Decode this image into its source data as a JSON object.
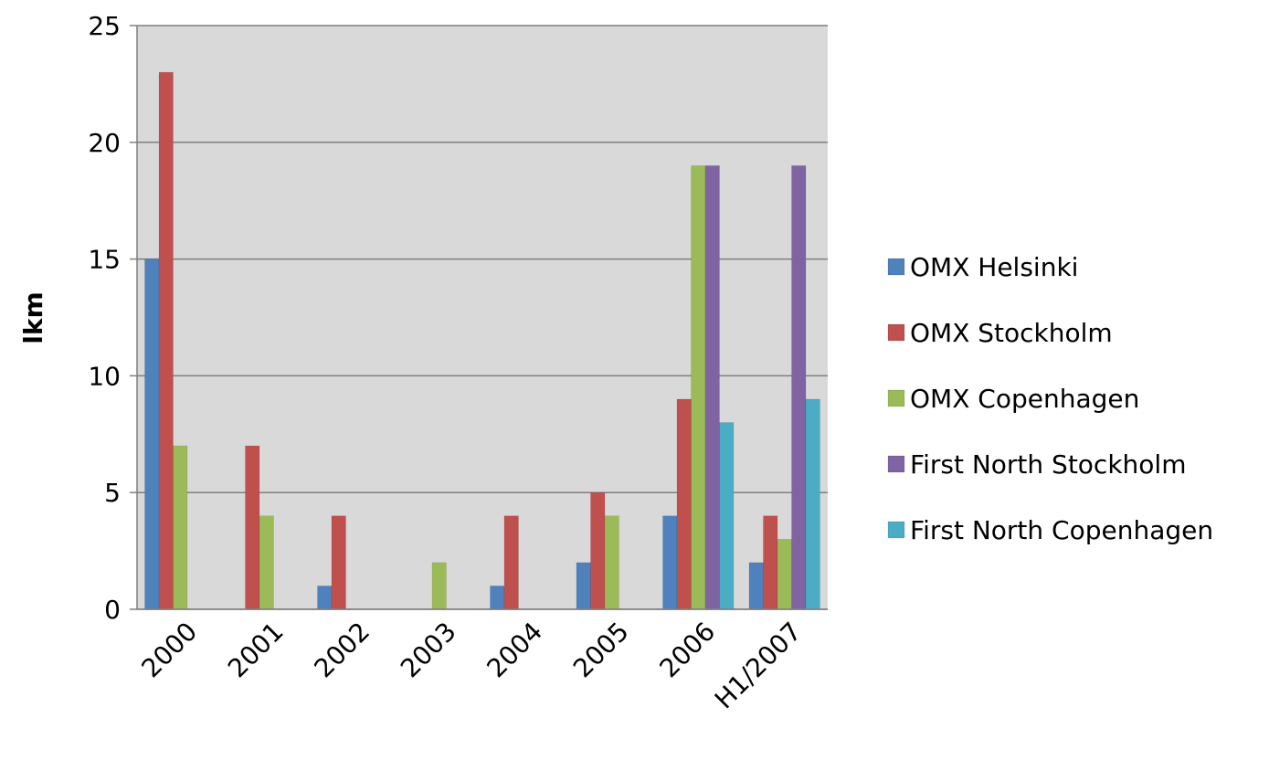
{
  "chart_data": {
    "type": "bar",
    "title": "",
    "xlabel": "",
    "ylabel": "lkm",
    "ylim": [
      0,
      25
    ],
    "yticks": [
      0,
      5,
      10,
      15,
      20,
      25
    ],
    "categories": [
      "2000",
      "2001",
      "2002",
      "2003",
      "2004",
      "2005",
      "2006",
      "H1/2007"
    ],
    "series": [
      {
        "name": "OMX Helsinki",
        "color": "#4F81BD",
        "values": [
          15,
          0,
          1,
          0,
          1,
          2,
          4,
          2
        ]
      },
      {
        "name": "OMX Stockholm",
        "color": "#C0504D",
        "values": [
          23,
          7,
          4,
          0,
          4,
          5,
          9,
          4
        ]
      },
      {
        "name": "OMX Copenhagen",
        "color": "#9BBB59",
        "values": [
          7,
          4,
          0,
          2,
          0,
          4,
          19,
          3
        ]
      },
      {
        "name": "First North Stockholm",
        "color": "#8064A2",
        "values": [
          0,
          0,
          0,
          0,
          0,
          0,
          19,
          19
        ]
      },
      {
        "name": "First North Copenhagen",
        "color": "#4BACC6",
        "values": [
          0,
          0,
          0,
          0,
          0,
          0,
          8,
          9
        ]
      }
    ],
    "grid": true,
    "plot_background": "#D9D9D9",
    "legend_position": "right"
  }
}
